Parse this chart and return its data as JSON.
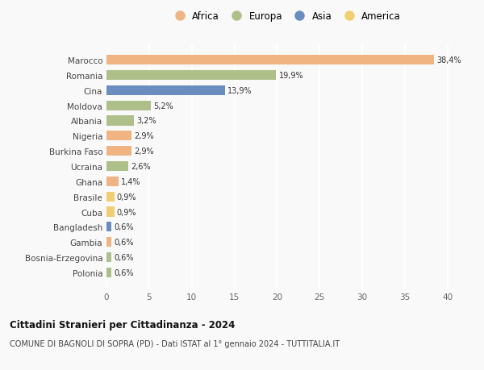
{
  "countries": [
    "Marocco",
    "Romania",
    "Cina",
    "Moldova",
    "Albania",
    "Nigeria",
    "Burkina Faso",
    "Ucraina",
    "Ghana",
    "Brasile",
    "Cuba",
    "Bangladesh",
    "Gambia",
    "Bosnia-Erzegovina",
    "Polonia"
  ],
  "values": [
    38.4,
    19.9,
    13.9,
    5.2,
    3.2,
    2.9,
    2.9,
    2.6,
    1.4,
    0.9,
    0.9,
    0.6,
    0.6,
    0.6,
    0.6
  ],
  "labels": [
    "38,4%",
    "19,9%",
    "13,9%",
    "5,2%",
    "3,2%",
    "2,9%",
    "2,9%",
    "2,6%",
    "1,4%",
    "0,9%",
    "0,9%",
    "0,6%",
    "0,6%",
    "0,6%",
    "0,6%"
  ],
  "continents": [
    "Africa",
    "Europa",
    "Asia",
    "Europa",
    "Europa",
    "Africa",
    "Africa",
    "Europa",
    "Africa",
    "America",
    "America",
    "Asia",
    "Africa",
    "Europa",
    "Europa"
  ],
  "continent_colors": {
    "Africa": "#F0B482",
    "Europa": "#AEBF8A",
    "Asia": "#6B8CBF",
    "America": "#F2CE72"
  },
  "legend_order": [
    "Africa",
    "Europa",
    "Asia",
    "America"
  ],
  "xlim": [
    0,
    42
  ],
  "xticks": [
    0,
    5,
    10,
    15,
    20,
    25,
    30,
    35,
    40
  ],
  "title1": "Cittadini Stranieri per Cittadinanza - 2024",
  "title2": "COMUNE DI BAGNOLI DI SOPRA (PD) - Dati ISTAT al 1° gennaio 2024 - TUTTITALIA.IT",
  "background_color": "#f9f9f9",
  "grid_color": "#ffffff",
  "bar_height": 0.65
}
